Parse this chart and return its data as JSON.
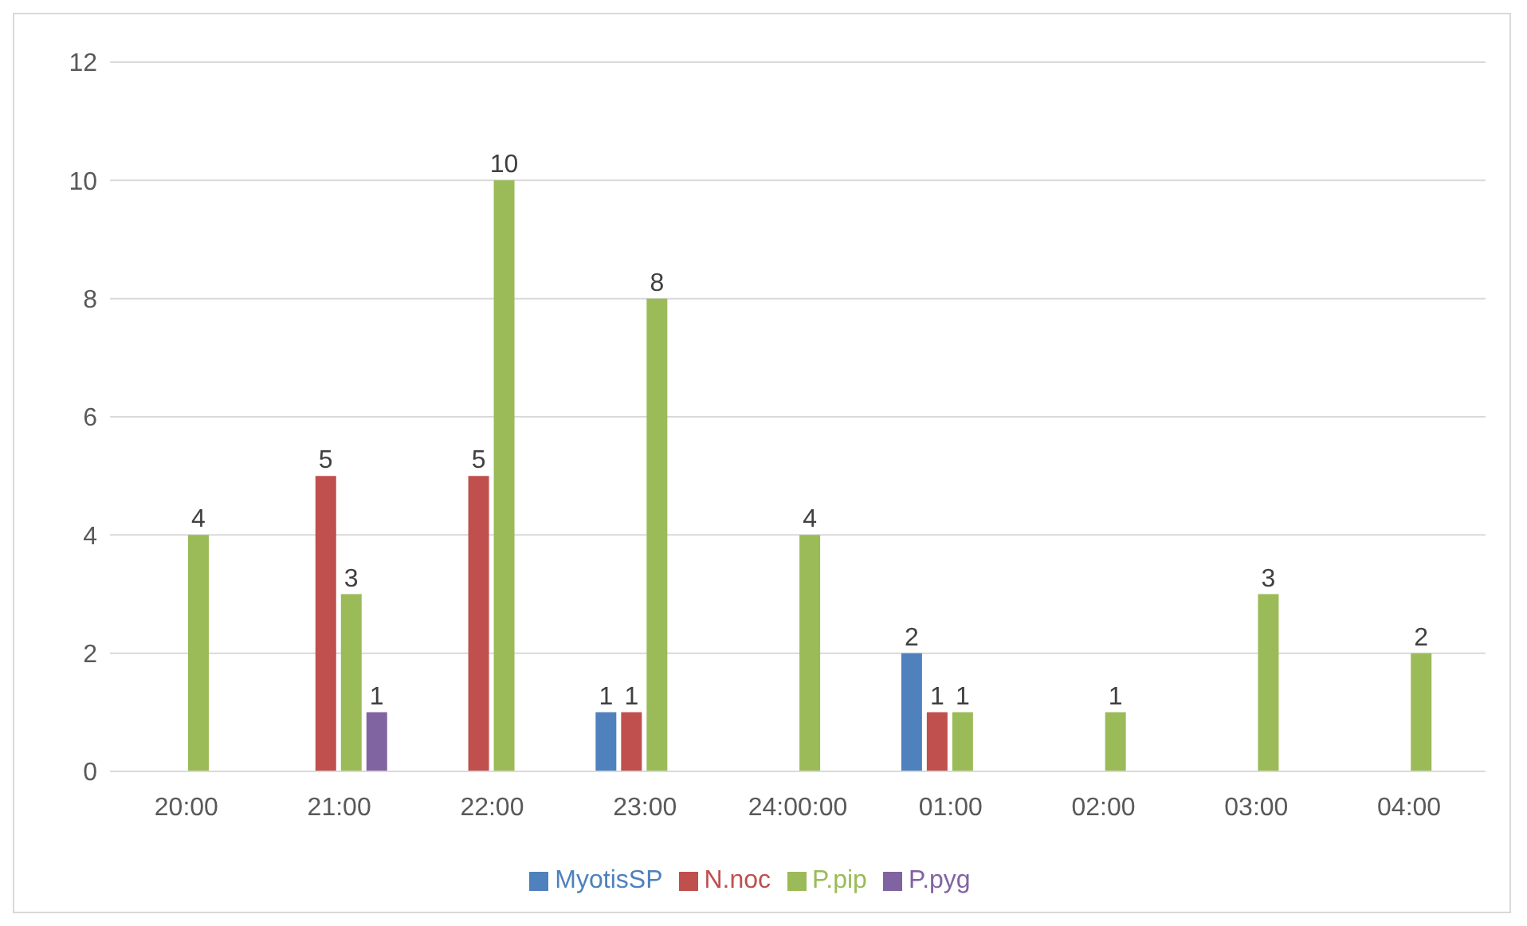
{
  "chart_data": {
    "type": "bar",
    "categories": [
      "20:00",
      "21:00",
      "22:00",
      "23:00",
      "24:00:00",
      "01:00",
      "02:00",
      "03:00",
      "04:00"
    ],
    "series": [
      {
        "name": "MyotisSP",
        "color": "#4f81bd",
        "values": [
          null,
          null,
          null,
          1,
          null,
          2,
          null,
          null,
          null
        ]
      },
      {
        "name": "N.noc",
        "color": "#c0504d",
        "values": [
          null,
          5,
          5,
          1,
          null,
          1,
          null,
          null,
          null
        ]
      },
      {
        "name": "P.pip",
        "color": "#9bbb59",
        "values": [
          4,
          3,
          10,
          8,
          4,
          1,
          1,
          3,
          2
        ]
      },
      {
        "name": "P.pyg",
        "color": "#8064a2",
        "values": [
          null,
          1,
          null,
          null,
          null,
          null,
          null,
          null,
          null
        ]
      }
    ],
    "ylim": [
      0,
      12
    ],
    "yticks": [
      0,
      2,
      4,
      6,
      8,
      10,
      12
    ],
    "grid": "y",
    "legend": "bottom",
    "data_labels": true
  }
}
